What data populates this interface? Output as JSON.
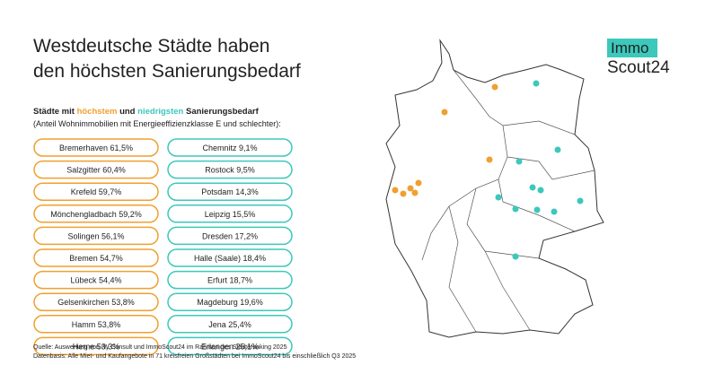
{
  "header": {
    "title_lines": [
      "Westdeutsche Städte haben",
      "den höchsten Sanierungsbedarf"
    ]
  },
  "subtitle": {
    "parts": [
      "Städte mit ",
      "höchstem",
      " und ",
      "niedrigsten",
      " Sanierungsbedarf"
    ],
    "note": "(Anteil Wohnimmobilien mit Energieeffizienzklasse E und schlechter):"
  },
  "highest": [
    "Bremerhaven 61,5%",
    "Salzgitter 60,4%",
    "Krefeld 59,7%",
    "Mönchengladbach 59,2%",
    "Solingen 56,1%",
    "Bremen 54,7%",
    "Lübeck 54,4%",
    "Gelsenkirchen 53,8%",
    "Hamm 53,8%",
    "Herne 53,3%"
  ],
  "lowest": [
    "Chemnitz 9,1%",
    "Rostock 9,5%",
    "Potsdam 14,3%",
    "Leipzig 15,5%",
    "Dresden 17,2%",
    "Halle (Saale) 18,4%",
    "Erfurt 18,7%",
    "Magdeburg 19,6%",
    "Jena 25,4%",
    "Erlangen 25,1%"
  ],
  "footer": [
    "Quelle: Auswertung von IW Consult und ImmoScout24 im Rahmen des Städteranking 2025",
    "Datenbasis: Alle Miet- und Kaufangebote in 71 kreisfreien Großstädten bei ImmoScout24 bis einschließlich Q3 2025"
  ],
  "logo": {
    "top": "Immo",
    "bottom": "Scout24"
  }
}
